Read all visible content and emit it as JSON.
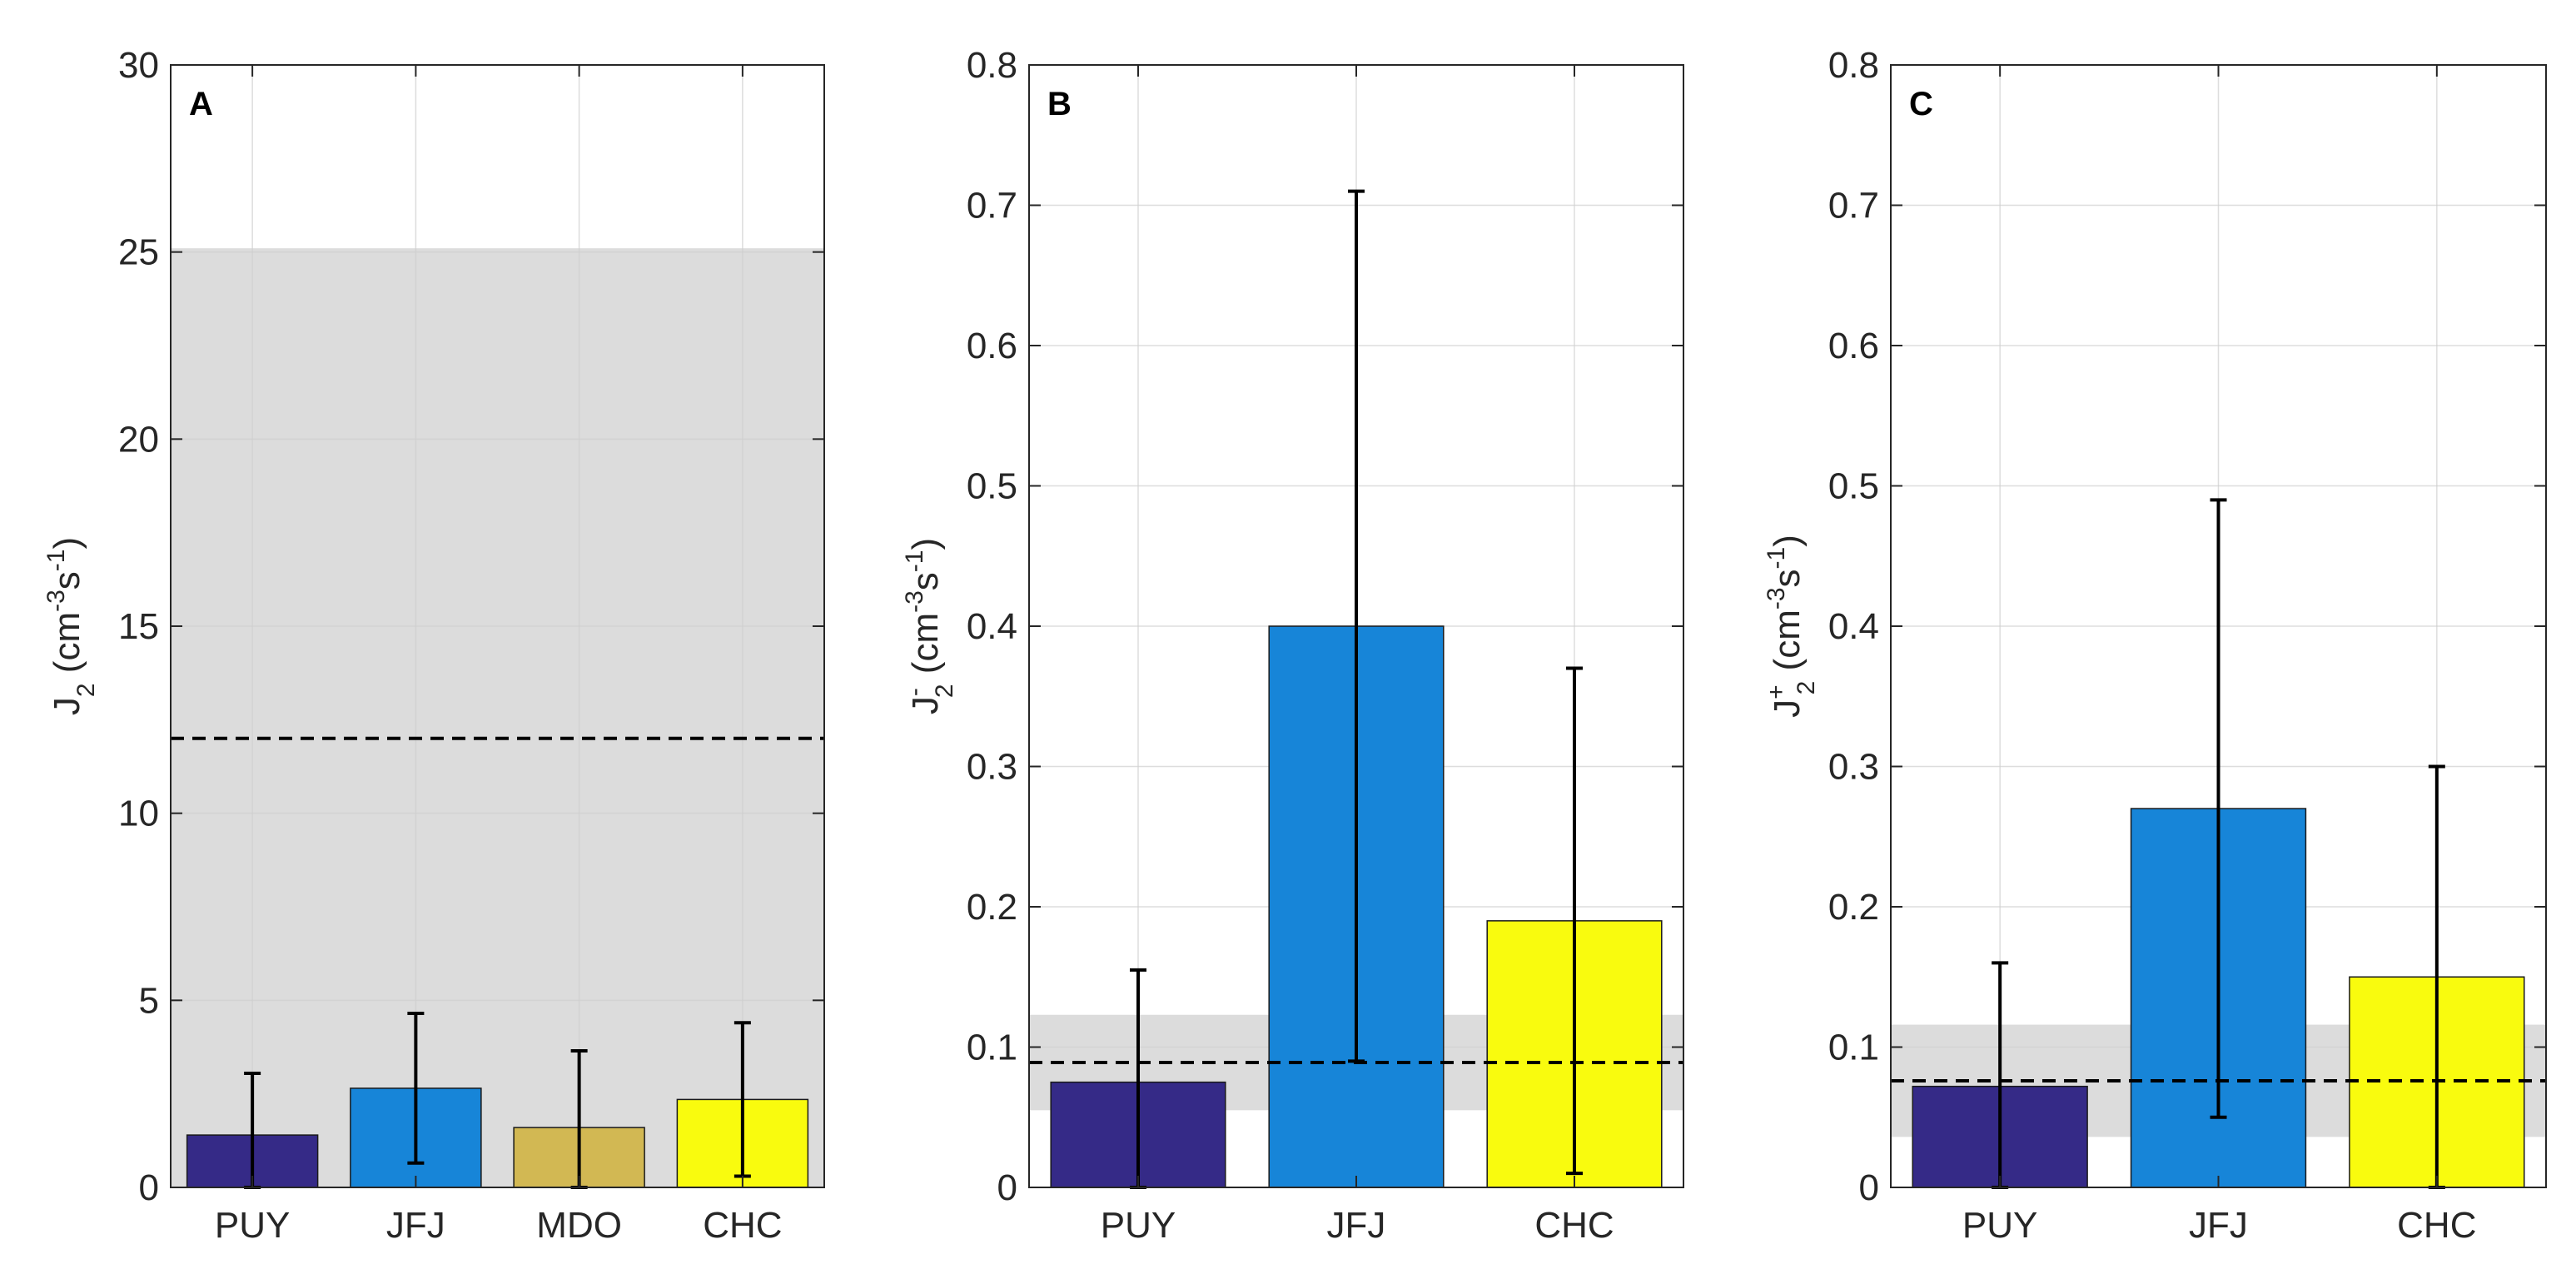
{
  "chart_data": [
    {
      "type": "bar",
      "panel": "A",
      "categories": [
        "PUY",
        "JFJ",
        "MDO",
        "CHC"
      ],
      "values": [
        1.4,
        2.65,
        1.6,
        2.35
      ],
      "error_low": [
        0,
        0.65,
        0,
        0.3
      ],
      "error_high": [
        3.05,
        4.65,
        3.65,
        4.4
      ],
      "colors": [
        "#352a87",
        "#1785d8",
        "#d2b853",
        "#f9fb0e"
      ],
      "reference_line": 12.0,
      "reference_band": [
        0,
        25.1
      ],
      "ylabel": {
        "main": "J",
        "sub": "2",
        "sup": "",
        "units_pre": " (cm",
        "exp1": "-3",
        "mid": "s",
        "exp2": "-1",
        "close": ")"
      },
      "ylim": [
        0,
        30
      ],
      "yticks": [
        0,
        5,
        10,
        15,
        20,
        25,
        30
      ],
      "ytick_labels": [
        "0",
        "5",
        "10",
        "15",
        "20",
        "25",
        "30"
      ],
      "grid": true
    },
    {
      "type": "bar",
      "panel": "B",
      "categories": [
        "PUY",
        "JFJ",
        "CHC"
      ],
      "values": [
        0.075,
        0.4,
        0.19
      ],
      "error_low": [
        0,
        0.09,
        0.01
      ],
      "error_high": [
        0.155,
        0.71,
        0.37
      ],
      "colors": [
        "#352a87",
        "#1785d8",
        "#f9fb0e"
      ],
      "reference_line": 0.089,
      "reference_band": [
        0.055,
        0.123
      ],
      "ylabel": {
        "main": "J",
        "sub": "2",
        "sup": "-",
        "units_pre": " (cm",
        "exp1": "-3",
        "mid": "s",
        "exp2": "-1",
        "close": ")"
      },
      "ylim": [
        0,
        0.8
      ],
      "yticks": [
        0,
        0.1,
        0.2,
        0.3,
        0.4,
        0.5,
        0.6,
        0.7,
        0.8
      ],
      "ytick_labels": [
        "0",
        "0.1",
        "0.2",
        "0.3",
        "0.4",
        "0.5",
        "0.6",
        "0.7",
        "0.8"
      ],
      "grid": true
    },
    {
      "type": "bar",
      "panel": "C",
      "categories": [
        "PUY",
        "JFJ",
        "CHC"
      ],
      "values": [
        0.072,
        0.27,
        0.15
      ],
      "error_low": [
        0,
        0.05,
        0
      ],
      "error_high": [
        0.16,
        0.49,
        0.3
      ],
      "colors": [
        "#352a87",
        "#1785d8",
        "#f9fb0e"
      ],
      "reference_line": 0.076,
      "reference_band": [
        0.036,
        0.116
      ],
      "ylabel": {
        "main": "J",
        "sub": "2",
        "sup": "+",
        "units_pre": " (cm",
        "exp1": "-3",
        "mid": "s",
        "exp2": "-1",
        "close": ")"
      },
      "ylim": [
        0,
        0.8
      ],
      "yticks": [
        0,
        0.1,
        0.2,
        0.3,
        0.4,
        0.5,
        0.6,
        0.7,
        0.8
      ],
      "ytick_labels": [
        "0",
        "0.1",
        "0.2",
        "0.3",
        "0.4",
        "0.5",
        "0.6",
        "0.7",
        "0.8"
      ],
      "grid": true
    }
  ]
}
